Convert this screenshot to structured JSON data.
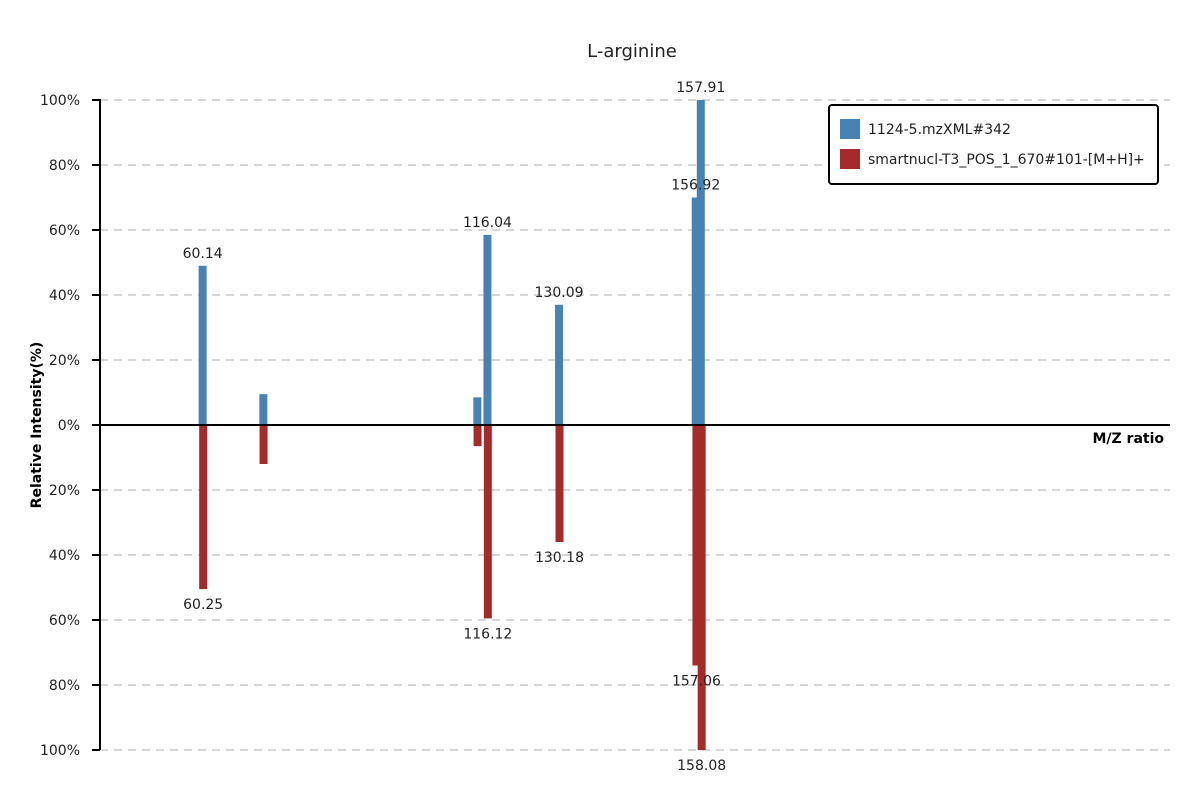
{
  "chart_data": {
    "type": "bar",
    "title": "L-arginine",
    "xlabel": "M/Z ratio",
    "ylabel": "Relative Intensity(%)",
    "ylim": [
      -100,
      100
    ],
    "y_tick_values": [
      100,
      80,
      60,
      40,
      20,
      0,
      -20,
      -40,
      -60,
      -80,
      -100
    ],
    "y_tick_labels": [
      "100%",
      "80%",
      "60%",
      "40%",
      "20%",
      "0%",
      "20%",
      "40%",
      "60%",
      "80%",
      "100%"
    ],
    "grid": true,
    "legend_position": "top-right",
    "colors": {
      "top": "#4682b4",
      "bottom": "#a52a2a"
    },
    "series": [
      {
        "name": "1124-5.mzXML#342",
        "direction": "up",
        "peaks": [
          {
            "mz": 60.14,
            "intensity": 49,
            "label": "60.14"
          },
          {
            "mz": 72.06,
            "intensity": 9.5,
            "label": ""
          },
          {
            "mz": 114.06,
            "intensity": 8.5,
            "label": ""
          },
          {
            "mz": 116.04,
            "intensity": 58.5,
            "label": "116.04"
          },
          {
            "mz": 130.09,
            "intensity": 37,
            "label": "130.09"
          },
          {
            "mz": 156.92,
            "intensity": 70,
            "label": "156.92"
          },
          {
            "mz": 157.91,
            "intensity": 100,
            "label": "157.91"
          }
        ]
      },
      {
        "name": "smartnucl-T3_POS_1_670#101-[M+H]+",
        "direction": "down",
        "peaks": [
          {
            "mz": 60.25,
            "intensity": 50.5,
            "label": "60.25"
          },
          {
            "mz": 72.1,
            "intensity": 12,
            "label": ""
          },
          {
            "mz": 114.1,
            "intensity": 6.5,
            "label": ""
          },
          {
            "mz": 116.12,
            "intensity": 59.5,
            "label": "116.12"
          },
          {
            "mz": 130.18,
            "intensity": 36,
            "label": "130.18"
          },
          {
            "mz": 157.06,
            "intensity": 74,
            "label": "157.06"
          },
          {
            "mz": 158.08,
            "intensity": 100,
            "label": "158.08"
          }
        ]
      }
    ]
  }
}
